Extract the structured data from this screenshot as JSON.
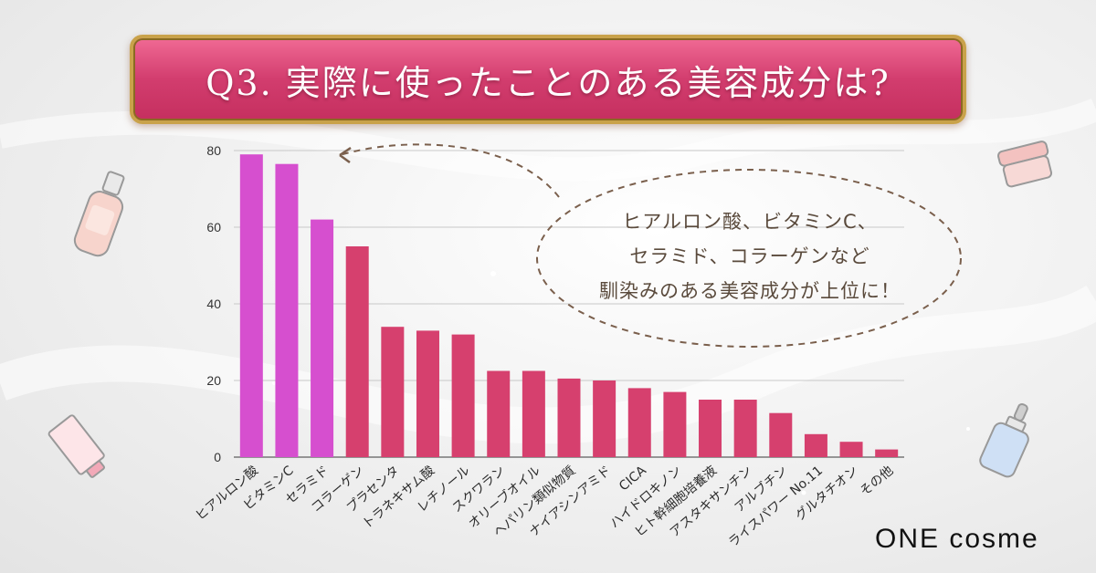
{
  "banner": {
    "title": "Q3. 実際に使ったことのある美容成分は?"
  },
  "callout": {
    "lines": [
      "ヒアルロン酸、ビタミンC、",
      "セラミド、コラーゲンなど",
      "馴染みのある美容成分が上位に！"
    ]
  },
  "logo": {
    "text": "ONE cosme"
  },
  "colors": {
    "highlight": "#d64fcf",
    "bar": "#d6406e",
    "banner": "#d23d6e",
    "callout_text": "#5a4a3c"
  },
  "decorations": [
    "cosmetic-bottle-icon",
    "cream-jar-icon",
    "tube-icon",
    "dropper-bottle-icon"
  ],
  "chart_data": {
    "type": "bar",
    "title": "",
    "xlabel": "",
    "ylabel": "",
    "ylim": [
      0,
      80
    ],
    "yticks": [
      0,
      20,
      40,
      60,
      80
    ],
    "categories": [
      "ヒアルロン酸",
      "ビタミンC",
      "セラミド",
      "コラーゲン",
      "プラセンタ",
      "トラネキサム酸",
      "レチノール",
      "スクワラン",
      "オリーブオイル",
      "ヘパリン類似物質",
      "ナイアシンアミド",
      "CICA",
      "ハイドロキノン",
      "ヒト幹細胞培養液",
      "アスタキサンチン",
      "アルブチン",
      "ライスパワー No.11",
      "グルタチオン",
      "その他"
    ],
    "values": [
      79,
      76.5,
      62,
      55,
      34,
      33,
      32,
      22.5,
      22.5,
      20.5,
      20,
      18,
      17,
      15,
      15,
      11.5,
      6,
      4,
      2
    ],
    "highlighted": [
      0,
      1,
      2
    ]
  }
}
